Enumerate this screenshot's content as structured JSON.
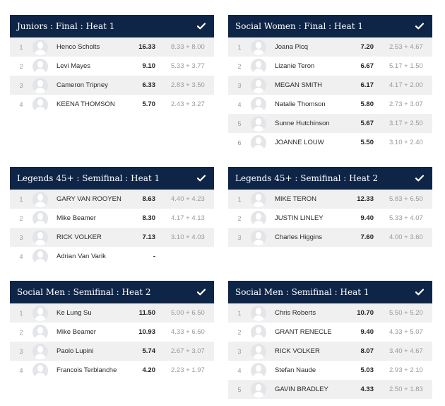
{
  "heats": [
    {
      "title": "Juniors : Final : Heat 1",
      "rows": [
        {
          "rank": "1",
          "name": "Henco Scholts",
          "total": "16.33",
          "scores": "8.33 + 8.00"
        },
        {
          "rank": "2",
          "name": "Levi Mayes",
          "total": "9.10",
          "scores": "5.33 + 3.77"
        },
        {
          "rank": "3",
          "name": "Cameron Tripney",
          "total": "6.33",
          "scores": "2.83 + 3.50"
        },
        {
          "rank": "4",
          "name": "KEENA THOMSON",
          "total": "5.70",
          "scores": "2.43 + 3.27"
        }
      ]
    },
    {
      "title": "Social Women : Final : Heat 1",
      "rows": [
        {
          "rank": "1",
          "name": "Joana Picq",
          "total": "7.20",
          "scores": "2.53 + 4.67"
        },
        {
          "rank": "2",
          "name": "Lizanie Teron",
          "total": "6.67",
          "scores": "5.17 + 1.50"
        },
        {
          "rank": "3",
          "name": "MEGAN SMITH",
          "total": "6.17",
          "scores": "4.17 + 2.00"
        },
        {
          "rank": "4",
          "name": "Natalie Thomson",
          "total": "5.80",
          "scores": "2.73 + 3.07"
        },
        {
          "rank": "5",
          "name": "Sunne Hutchinson",
          "total": "5.67",
          "scores": "3.17 + 2.50"
        },
        {
          "rank": "6",
          "name": "JOANNE LOUW",
          "total": "5.50",
          "scores": "3.10 + 2.40"
        }
      ]
    },
    {
      "title": "Legends 45+ : Semifinal : Heat 1",
      "rows": [
        {
          "rank": "1",
          "name": "GARY VAN ROOYEN",
          "total": "8.63",
          "scores": "4.40 + 4.23"
        },
        {
          "rank": "2",
          "name": "Mike Beamer",
          "total": "8.30",
          "scores": "4.17 + 4.13"
        },
        {
          "rank": "3",
          "name": "RICK VOLKER",
          "total": "7.13",
          "scores": "3.10 + 4.03"
        },
        {
          "rank": "4",
          "name": "Adrian Van Varik",
          "total": "-",
          "scores": ""
        }
      ]
    },
    {
      "title": "Legends 45+ : Semifinal : Heat 2",
      "rows": [
        {
          "rank": "1",
          "name": "MIKE TERON",
          "total": "12.33",
          "scores": "5.83 + 6.50"
        },
        {
          "rank": "2",
          "name": "JUSTIN LINLEY",
          "total": "9.40",
          "scores": "5.33 + 4.07"
        },
        {
          "rank": "3",
          "name": "Charles Higgins",
          "total": "7.60",
          "scores": "4.00 + 3.60"
        }
      ]
    },
    {
      "title": "Social Men : Semifinal : Heat 2",
      "rows": [
        {
          "rank": "1",
          "name": "Ke Lung Su",
          "total": "11.50",
          "scores": "5.00 + 6.50"
        },
        {
          "rank": "2",
          "name": "Mike Beamer",
          "total": "10.93",
          "scores": "4.33 + 6.60"
        },
        {
          "rank": "3",
          "name": "Paolo Lupini",
          "total": "5.74",
          "scores": "2.67 + 3.07"
        },
        {
          "rank": "4",
          "name": "Francois Terblanche",
          "total": "4.20",
          "scores": "2.23 + 1.97"
        }
      ]
    },
    {
      "title": "Social Men : Semifinal : Heat 1",
      "rows": [
        {
          "rank": "1",
          "name": "Chris Roberts",
          "total": "10.70",
          "scores": "5.50 + 5.20"
        },
        {
          "rank": "2",
          "name": "GRANT RENECLE",
          "total": "9.40",
          "scores": "4.33 + 5.07"
        },
        {
          "rank": "3",
          "name": "RICK VOLKER",
          "total": "8.07",
          "scores": "3.40 + 4.67"
        },
        {
          "rank": "4",
          "name": "Stefan Naude",
          "total": "5.03",
          "scores": "2.93 + 2.10"
        },
        {
          "rank": "5",
          "name": "GAVIN BRADLEY",
          "total": "4.33",
          "scores": "2.50 + 1.83"
        }
      ]
    }
  ],
  "colors": {
    "header_bg": "#0f2547",
    "row_alt": "#f0f0f0"
  },
  "icons": {
    "header_status": "check-icon",
    "athlete": "avatar-placeholder-icon"
  }
}
